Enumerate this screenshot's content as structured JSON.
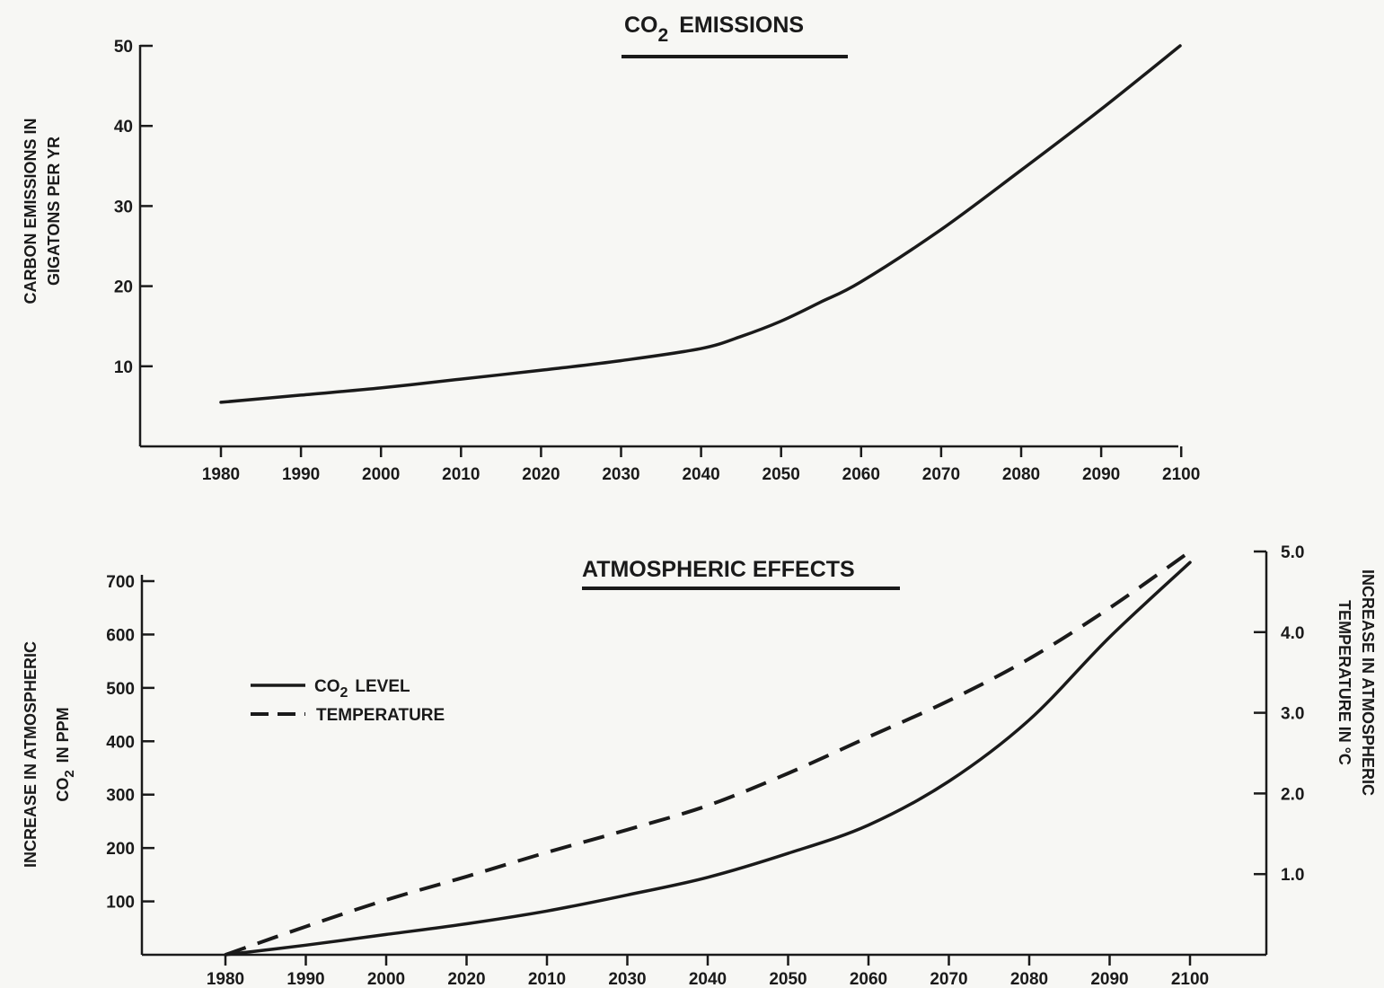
{
  "chart_data": [
    {
      "type": "line",
      "title": "CO2 EMISSIONS",
      "title_main": "CO",
      "title_sub": "2",
      "title_rest": "EMISSIONS",
      "ylabel_line1": "CARBON EMISSIONS IN",
      "ylabel_line2": "GIGATONS PER YR",
      "ylim": [
        0,
        50
      ],
      "y_ticks": [
        10,
        20,
        30,
        40,
        50
      ],
      "x_ticks": [
        "1980",
        "1990",
        "2000",
        "2010",
        "2020",
        "2030",
        "2040",
        "2050",
        "2060",
        "2070",
        "2080",
        "2090",
        "2100"
      ],
      "grid": false,
      "series": [
        {
          "x": [
            1980,
            1990,
            2000,
            2010,
            2020,
            2030,
            2040,
            2045,
            2050,
            2055,
            2060,
            2070,
            2080,
            2090,
            2100
          ],
          "values": [
            5.5,
            6.4,
            7.3,
            8.4,
            9.5,
            10.7,
            12.2,
            13.7,
            15.6,
            18.0,
            20.5,
            27.0,
            34.4,
            42.0,
            50.0
          ]
        }
      ]
    },
    {
      "type": "line",
      "title": "ATMOSPHERIC EFFECTS",
      "ylabel_left_line1": "INCREASE IN ATMOSPHERIC",
      "ylabel_left_line2_main": "CO",
      "ylabel_left_line2_sub": "2",
      "ylabel_left_line2_rest": "IN PPM",
      "ylabel_right_line1": "INCREASE IN ATMOSPHERIC",
      "ylabel_right_line2": "TEMPERATURE IN °C",
      "ylim_left": [
        0,
        700
      ],
      "ylim_right": [
        0,
        5.0
      ],
      "y_ticks_left": [
        100,
        200,
        300,
        400,
        500,
        600,
        700
      ],
      "y_ticks_right": [
        "1.0",
        "2.0",
        "3.0",
        "4.0",
        "5.0"
      ],
      "x_ticks": [
        "1980",
        "1990",
        "2000",
        "2020",
        "2010",
        "2030",
        "2040",
        "2050",
        "2060",
        "2070",
        "2080",
        "2090",
        "2100"
      ],
      "grid": false,
      "legend": {
        "placement": "top-left",
        "co2_main": "CO",
        "co2_sub": "2",
        "co2_rest": "LEVEL",
        "temperature": "TEMPERATURE"
      },
      "series": [
        {
          "name": "CO2 LEVEL",
          "style": "solid",
          "axis": "left",
          "x": [
            1980,
            1990,
            2000,
            2010,
            2020,
            2030,
            2040,
            2050,
            2060,
            2070,
            2080,
            2090,
            2100
          ],
          "values": [
            0,
            18,
            38,
            58,
            82,
            112,
            145,
            190,
            243,
            325,
            440,
            595,
            735
          ]
        },
        {
          "name": "TEMPERATURE",
          "style": "dashed",
          "axis": "right",
          "x": [
            1980,
            1990,
            2000,
            2010,
            2020,
            2030,
            2040,
            2050,
            2060,
            2070,
            2080,
            2090,
            2100
          ],
          "values": [
            0,
            0.35,
            0.68,
            0.97,
            1.27,
            1.55,
            1.85,
            2.25,
            2.7,
            3.15,
            3.67,
            4.3,
            5.0
          ]
        }
      ]
    }
  ]
}
